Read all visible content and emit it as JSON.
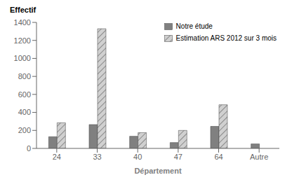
{
  "chart_data": {
    "type": "bar",
    "y_label": "Effectif",
    "x_label": "Département",
    "categories": [
      "24",
      "33",
      "40",
      "47",
      "64",
      "Autre"
    ],
    "series": [
      {
        "name": "Notre étude",
        "color": "#808080",
        "values": [
          130,
          265,
          135,
          65,
          245,
          50
        ]
      },
      {
        "name": "Estimation ARS 2012 sur 3 mois",
        "color": "#d0d0d0",
        "values": [
          285,
          1330,
          175,
          200,
          485,
          0
        ]
      }
    ],
    "ylim": [
      0,
      1400
    ],
    "yticks": [
      0,
      200,
      400,
      600,
      800,
      1000,
      1200,
      1400
    ],
    "grid": false,
    "legend": "upper right"
  }
}
